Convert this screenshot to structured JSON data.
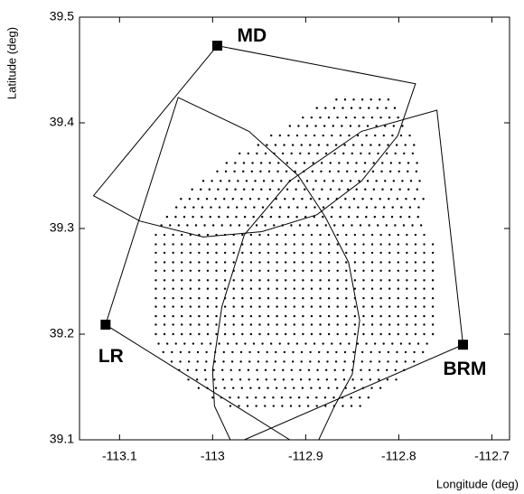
{
  "chart_data": {
    "type": "scatter",
    "x_label": "Longitude (deg)",
    "y_label": "Latitude (deg)",
    "xlim": [
      -113.143,
      -112.681
    ],
    "ylim": [
      39.1,
      39.5
    ],
    "xticks": [
      -113.1,
      -113,
      -112.9,
      -112.8,
      -112.7
    ],
    "yticks": [
      39.1,
      39.2,
      39.3,
      39.4,
      39.5
    ],
    "color": "#000000",
    "stations": [
      {
        "name": "MD",
        "lon": -112.995,
        "lat": 39.473
      },
      {
        "name": "LR",
        "lon": -113.115,
        "lat": 39.209
      },
      {
        "name": "BRM",
        "lon": -112.731,
        "lat": 39.19
      }
    ],
    "outlines": [
      {
        "lon": [
          -112.995,
          -112.782,
          -112.801,
          -112.84,
          -112.888,
          -112.947,
          -113.01,
          -113.078,
          -113.128,
          -112.995
        ],
        "lat": [
          39.473,
          39.437,
          39.388,
          39.345,
          39.313,
          39.297,
          39.292,
          39.307,
          39.331,
          39.473
        ]
      },
      {
        "lon": [
          -112.917,
          -113.115,
          -113.037,
          -112.961,
          -112.908,
          -112.879,
          -112.854,
          -112.842,
          -112.85,
          -112.869,
          -112.886
        ],
        "lat": [
          39.1,
          39.209,
          39.424,
          39.392,
          39.35,
          39.311,
          39.268,
          39.213,
          39.162,
          39.132,
          39.1
        ]
      },
      {
        "lon": [
          -112.981,
          -112.998,
          -113.0,
          -112.99,
          -112.966,
          -112.917,
          -112.84,
          -112.759,
          -112.731,
          -112.966
        ],
        "lat": [
          39.1,
          39.132,
          39.166,
          39.226,
          39.294,
          39.345,
          39.392,
          39.412,
          39.19,
          39.1
        ]
      }
    ],
    "dot_grid": {
      "lon_step": 0.0093,
      "rows": [
        {
          "lat": 39.422,
          "lon_min": -112.867,
          "lon_max": -112.811
        },
        {
          "lat": 39.414,
          "lon_min": -112.888,
          "lon_max": -112.801
        },
        {
          "lat": 39.405,
          "lon_min": -112.903,
          "lon_max": -112.796
        },
        {
          "lat": 39.397,
          "lon_min": -112.917,
          "lon_max": -112.791
        },
        {
          "lat": 39.388,
          "lon_min": -112.937,
          "lon_max": -112.786
        },
        {
          "lat": 39.379,
          "lon_min": -112.951,
          "lon_max": -112.783
        },
        {
          "lat": 39.371,
          "lon_min": -112.971,
          "lon_max": -112.782
        },
        {
          "lat": 39.362,
          "lon_min": -112.985,
          "lon_max": -112.779
        },
        {
          "lat": 39.354,
          "lon_min": -112.995,
          "lon_max": -112.777
        },
        {
          "lat": 39.345,
          "lon_min": -113.01,
          "lon_max": -112.776
        },
        {
          "lat": 39.337,
          "lon_min": -113.022,
          "lon_max": -112.774
        },
        {
          "lat": 39.328,
          "lon_min": -113.034,
          "lon_max": -112.773
        },
        {
          "lat": 39.32,
          "lon_min": -113.039,
          "lon_max": -112.772
        },
        {
          "lat": 39.311,
          "lon_min": -113.049,
          "lon_max": -112.772
        },
        {
          "lat": 39.303,
          "lon_min": -113.055,
          "lon_max": -112.772
        },
        {
          "lat": 39.294,
          "lon_min": -113.061,
          "lon_max": -112.77
        },
        {
          "lat": 39.285,
          "lon_min": -113.061,
          "lon_max": -112.762
        },
        {
          "lat": 39.277,
          "lon_min": -113.061,
          "lon_max": -112.762
        },
        {
          "lat": 39.268,
          "lon_min": -113.061,
          "lon_max": -112.762
        },
        {
          "lat": 39.26,
          "lon_min": -113.061,
          "lon_max": -112.762
        },
        {
          "lat": 39.251,
          "lon_min": -113.061,
          "lon_max": -112.762
        },
        {
          "lat": 39.243,
          "lon_min": -113.061,
          "lon_max": -112.762
        },
        {
          "lat": 39.234,
          "lon_min": -113.061,
          "lon_max": -112.762
        },
        {
          "lat": 39.226,
          "lon_min": -113.061,
          "lon_max": -112.762
        },
        {
          "lat": 39.217,
          "lon_min": -113.061,
          "lon_max": -112.76
        },
        {
          "lat": 39.209,
          "lon_min": -113.061,
          "lon_max": -112.76
        },
        {
          "lat": 39.2,
          "lon_min": -113.061,
          "lon_max": -112.76
        },
        {
          "lat": 39.191,
          "lon_min": -113.058,
          "lon_max": -112.767
        },
        {
          "lat": 39.183,
          "lon_min": -113.053,
          "lon_max": -112.772
        },
        {
          "lat": 39.174,
          "lon_min": -113.044,
          "lon_max": -112.78
        },
        {
          "lat": 39.166,
          "lon_min": -113.036,
          "lon_max": -112.789
        },
        {
          "lat": 39.157,
          "lon_min": -113.026,
          "lon_max": -112.801
        },
        {
          "lat": 39.149,
          "lon_min": -113.015,
          "lon_max": -112.816
        },
        {
          "lat": 39.14,
          "lon_min": -113.0,
          "lon_max": -112.83
        },
        {
          "lat": 39.132,
          "lon_min": -112.981,
          "lon_max": -112.84
        }
      ]
    }
  }
}
